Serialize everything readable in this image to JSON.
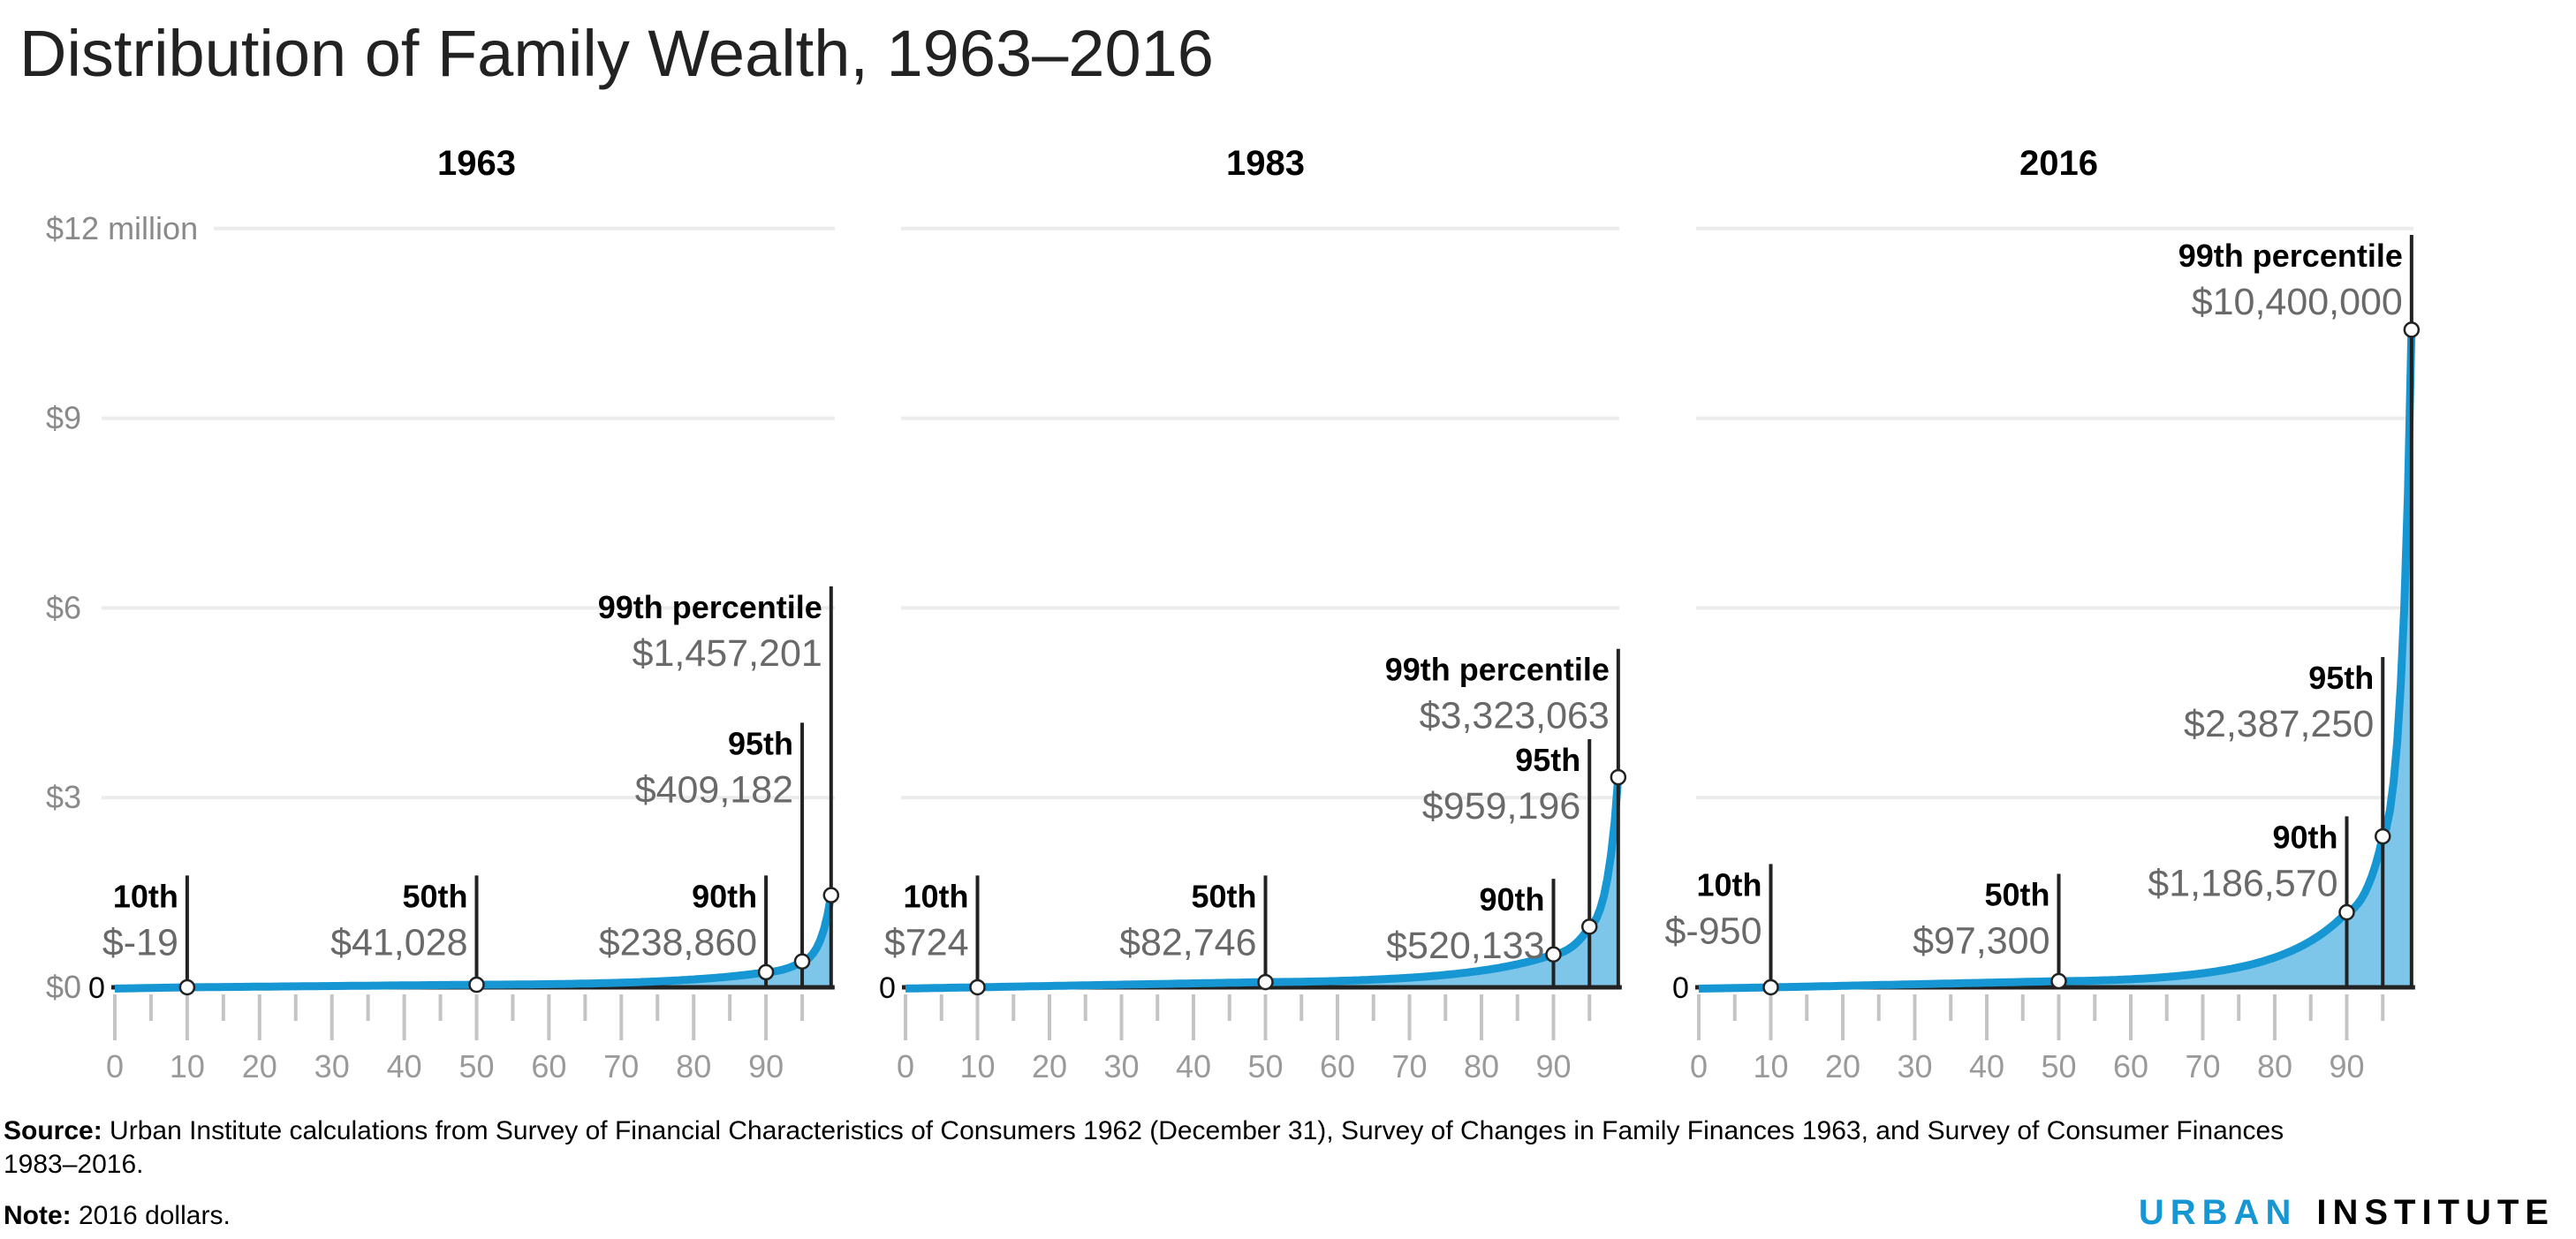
{
  "title": "Distribution of Family Wealth, 1963–2016",
  "y_axis": {
    "tick_labels": [
      "$0",
      "$3",
      "$6",
      "$9",
      "$12 million"
    ],
    "zero_label": "0"
  },
  "chart_data": [
    {
      "type": "area",
      "title": "1963",
      "xlabel": "",
      "ylabel": "",
      "x_ticks": [
        0,
        10,
        20,
        30,
        40,
        50,
        60,
        70,
        80,
        90
      ],
      "xlim": [
        0,
        99
      ],
      "ylim": [
        0,
        12000000
      ],
      "grid": true,
      "points": [
        {
          "percentile": 10,
          "label": "10th",
          "value": -19,
          "value_label": "$-19"
        },
        {
          "percentile": 50,
          "label": "50th",
          "value": 41028,
          "value_label": "$41,028"
        },
        {
          "percentile": 90,
          "label": "90th",
          "value": 238860,
          "value_label": "$238,860"
        },
        {
          "percentile": 95,
          "label": "95th",
          "value": 409182,
          "value_label": "$409,182"
        },
        {
          "percentile": 99,
          "label": "99th percentile",
          "value": 1457201,
          "value_label": "$1,457,201"
        }
      ]
    },
    {
      "type": "area",
      "title": "1983",
      "xlabel": "",
      "ylabel": "",
      "x_ticks": [
        0,
        10,
        20,
        30,
        40,
        50,
        60,
        70,
        80,
        90
      ],
      "xlim": [
        0,
        99
      ],
      "ylim": [
        0,
        12000000
      ],
      "grid": true,
      "points": [
        {
          "percentile": 10,
          "label": "10th",
          "value": 724,
          "value_label": "$724"
        },
        {
          "percentile": 50,
          "label": "50th",
          "value": 82746,
          "value_label": "$82,746"
        },
        {
          "percentile": 90,
          "label": "90th",
          "value": 520133,
          "value_label": "$520,133"
        },
        {
          "percentile": 95,
          "label": "95th",
          "value": 959196,
          "value_label": "$959,196"
        },
        {
          "percentile": 99,
          "label": "99th percentile",
          "value": 3323063,
          "value_label": "$3,323,063"
        }
      ]
    },
    {
      "type": "area",
      "title": "2016",
      "xlabel": "",
      "ylabel": "",
      "x_ticks": [
        0,
        10,
        20,
        30,
        40,
        50,
        60,
        70,
        80,
        90
      ],
      "xlim": [
        0,
        99
      ],
      "ylim": [
        0,
        12000000
      ],
      "grid": true,
      "points": [
        {
          "percentile": 10,
          "label": "10th",
          "value": -950,
          "value_label": "$-950"
        },
        {
          "percentile": 50,
          "label": "50th",
          "value": 97300,
          "value_label": "$97,300"
        },
        {
          "percentile": 90,
          "label": "90th",
          "value": 1186570,
          "value_label": "$1,186,570"
        },
        {
          "percentile": 95,
          "label": "95th",
          "value": 2387250,
          "value_label": "$2,387,250"
        },
        {
          "percentile": 99,
          "label": "99th percentile",
          "value": 10400000,
          "value_label": "$10,400,000"
        }
      ]
    }
  ],
  "colors": {
    "line": "#1696d2",
    "fill": "#7dc6ea",
    "grid": "#ececec",
    "axis": "#222222",
    "tick": "#c4c4c4",
    "logo_urban": "#1696d2",
    "logo_institute": "#000000"
  },
  "footer": {
    "source_label": "Source:",
    "source_text_1": " Urban Institute calculations from Survey of Financial Characteristics of Consumers 1962 (December 31), Survey of Changes in Family Finances 1963, and Survey of Consumer Finances",
    "source_text_2": "1983–2016.",
    "note_label": "Note:",
    "note_text": "  2016 dollars."
  },
  "logo": {
    "word1": "URBAN",
    "word2": "INSTITUTE"
  }
}
